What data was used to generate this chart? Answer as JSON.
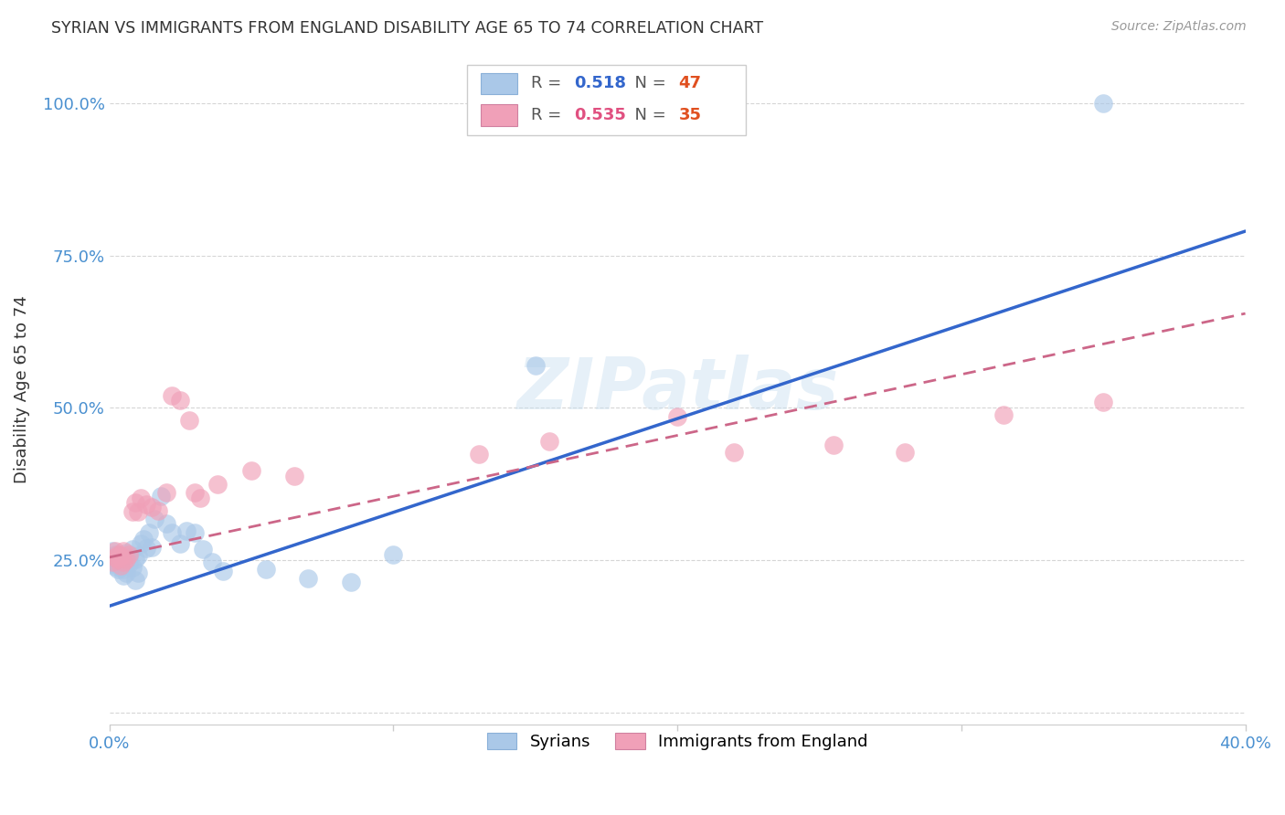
{
  "title": "SYRIAN VS IMMIGRANTS FROM ENGLAND DISABILITY AGE 65 TO 74 CORRELATION CHART",
  "source": "Source: ZipAtlas.com",
  "ylabel": "Disability Age 65 to 74",
  "xlim": [
    0.0,
    0.4
  ],
  "ylim": [
    -0.02,
    1.08
  ],
  "xticks": [
    0.0,
    0.1,
    0.2,
    0.3,
    0.4
  ],
  "xtick_labels": [
    "0.0%",
    "",
    "",
    "",
    "40.0%"
  ],
  "ytick_labels": [
    "",
    "25.0%",
    "50.0%",
    "75.0%",
    "100.0%"
  ],
  "yticks": [
    0.0,
    0.25,
    0.5,
    0.75,
    1.0
  ],
  "syrians_R": "0.518",
  "syrians_N": "47",
  "england_R": "0.535",
  "england_N": "35",
  "syrians_line_color": "#3366cc",
  "england_line_color": "#cc6688",
  "watermark": "ZIPatlas",
  "syrians_line_x0": 0.0,
  "syrians_line_y0": 0.175,
  "syrians_line_x1": 0.4,
  "syrians_line_y1": 0.79,
  "england_line_x0": 0.0,
  "england_line_y0": 0.255,
  "england_line_x1": 0.4,
  "england_line_y1": 0.655,
  "syrians_x": [
    0.001,
    0.001,
    0.001,
    0.002,
    0.002,
    0.002,
    0.003,
    0.003,
    0.003,
    0.004,
    0.004,
    0.004,
    0.005,
    0.005,
    0.005,
    0.006,
    0.006,
    0.006,
    0.007,
    0.007,
    0.008,
    0.008,
    0.009,
    0.009,
    0.01,
    0.01,
    0.011,
    0.012,
    0.013,
    0.014,
    0.015,
    0.016,
    0.018,
    0.02,
    0.022,
    0.025,
    0.027,
    0.03,
    0.033,
    0.036,
    0.04,
    0.055,
    0.07,
    0.085,
    0.1,
    0.15,
    0.35
  ],
  "syrians_y": [
    0.245,
    0.255,
    0.265,
    0.24,
    0.248,
    0.26,
    0.25,
    0.258,
    0.235,
    0.242,
    0.252,
    0.238,
    0.248,
    0.236,
    0.225,
    0.255,
    0.262,
    0.23,
    0.245,
    0.255,
    0.268,
    0.238,
    0.252,
    0.218,
    0.258,
    0.23,
    0.278,
    0.285,
    0.27,
    0.295,
    0.272,
    0.318,
    0.355,
    0.31,
    0.295,
    0.278,
    0.298,
    0.295,
    0.268,
    0.248,
    0.232,
    0.235,
    0.22,
    0.215,
    0.26,
    0.57,
    1.0
  ],
  "england_x": [
    0.001,
    0.002,
    0.002,
    0.003,
    0.003,
    0.004,
    0.004,
    0.005,
    0.005,
    0.006,
    0.007,
    0.008,
    0.009,
    0.01,
    0.011,
    0.013,
    0.015,
    0.017,
    0.02,
    0.022,
    0.025,
    0.028,
    0.03,
    0.032,
    0.038,
    0.05,
    0.065,
    0.13,
    0.155,
    0.2,
    0.22,
    0.255,
    0.28,
    0.315,
    0.35
  ],
  "england_y": [
    0.248,
    0.255,
    0.265,
    0.252,
    0.26,
    0.242,
    0.258,
    0.248,
    0.265,
    0.252,
    0.26,
    0.33,
    0.345,
    0.33,
    0.352,
    0.342,
    0.338,
    0.332,
    0.362,
    0.52,
    0.512,
    0.48,
    0.362,
    0.352,
    0.375,
    0.398,
    0.388,
    0.425,
    0.445,
    0.485,
    0.428,
    0.44,
    0.428,
    0.488,
    0.51
  ],
  "background_color": "#ffffff",
  "grid_color": "#cccccc"
}
